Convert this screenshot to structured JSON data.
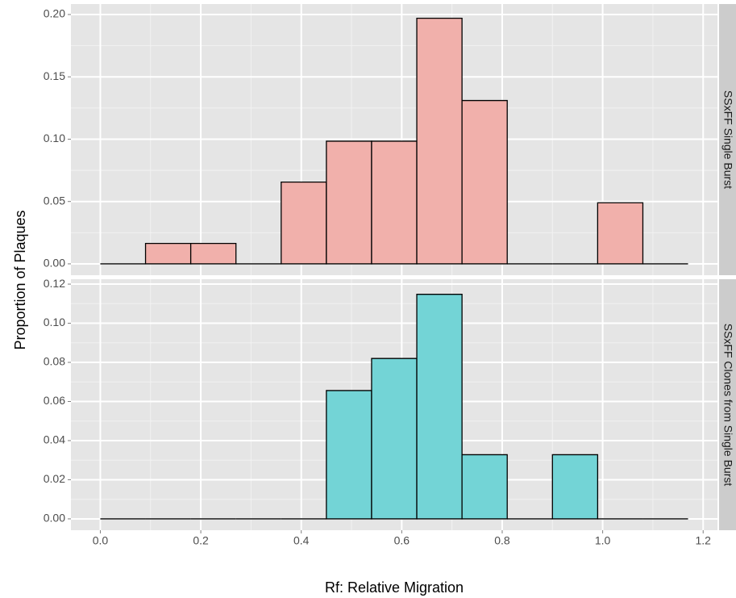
{
  "chart_data": [
    {
      "type": "histogram",
      "strip_label": "SSxFF Single Burst",
      "y_label": "Proportion of Plaques",
      "bins": [
        0,
        0.09,
        0.18,
        0.27,
        0.36,
        0.45,
        0.54,
        0.63,
        0.72,
        0.81,
        0.9,
        0.99,
        1.08,
        1.17
      ],
      "values": [
        0,
        0.0164,
        0.0164,
        0,
        0.0656,
        0.0984,
        0.0984,
        0.197,
        0.131,
        0,
        0,
        0.049,
        0
      ],
      "color": "#f1b0ab",
      "xlim": [
        -0.0585,
        1.2285
      ],
      "xticks": [
        {
          "value": 0,
          "label": "0.0"
        },
        {
          "value": 0.2,
          "label": "0.2"
        },
        {
          "value": 0.4,
          "label": "0.4"
        },
        {
          "value": 0.6,
          "label": "0.6"
        },
        {
          "value": 0.8,
          "label": "0.8"
        },
        {
          "value": 1,
          "label": "1.0"
        },
        {
          "value": 1.2,
          "label": "1.2"
        }
      ],
      "x_minor_ticks": [
        0.1,
        0.3,
        0.5,
        0.7,
        0.9,
        1.1
      ],
      "ylim": [
        -0.0091,
        0.2084
      ],
      "yticks": [
        {
          "value": 0,
          "label": "0.00"
        },
        {
          "value": 0.05,
          "label": "0.05"
        },
        {
          "value": 0.1,
          "label": "0.10"
        },
        {
          "value": 0.15,
          "label": "0.15"
        },
        {
          "value": 0.2,
          "label": "0.20"
        }
      ],
      "y_minor_ticks": [
        0.025,
        0.075,
        0.125,
        0.175
      ],
      "grid": true
    },
    {
      "type": "histogram",
      "strip_label": "SSxFF Clones from Single Burst",
      "x_label": "Rf: Relative Migration",
      "bins": [
        0,
        0.09,
        0.18,
        0.27,
        0.36,
        0.45,
        0.54,
        0.63,
        0.72,
        0.81,
        0.9,
        0.99,
        1.08,
        1.17
      ],
      "values": [
        0,
        0,
        0,
        0,
        0,
        0.0656,
        0.082,
        0.1148,
        0.0328,
        0,
        0.0328,
        0,
        0
      ],
      "color": "#73d4d6",
      "xlim": [
        -0.0585,
        1.2285
      ],
      "xticks": [
        {
          "value": 0,
          "label": "0.0"
        },
        {
          "value": 0.2,
          "label": "0.2"
        },
        {
          "value": 0.4,
          "label": "0.4"
        },
        {
          "value": 0.6,
          "label": "0.6"
        },
        {
          "value": 0.8,
          "label": "0.8"
        },
        {
          "value": 1,
          "label": "1.0"
        },
        {
          "value": 1.2,
          "label": "1.2"
        }
      ],
      "x_minor_ticks": [
        0.1,
        0.3,
        0.5,
        0.7,
        0.9,
        1.1
      ],
      "ylim": [
        -0.0058,
        0.1225
      ],
      "yticks": [
        {
          "value": 0,
          "label": "0.00"
        },
        {
          "value": 0.02,
          "label": "0.02"
        },
        {
          "value": 0.04,
          "label": "0.04"
        },
        {
          "value": 0.06,
          "label": "0.06"
        },
        {
          "value": 0.08,
          "label": "0.08"
        },
        {
          "value": 0.1,
          "label": "0.10"
        },
        {
          "value": 0.12,
          "label": "0.12"
        }
      ],
      "y_minor_ticks": [
        0.01,
        0.03,
        0.05,
        0.07,
        0.09,
        0.11
      ],
      "grid": true
    }
  ]
}
